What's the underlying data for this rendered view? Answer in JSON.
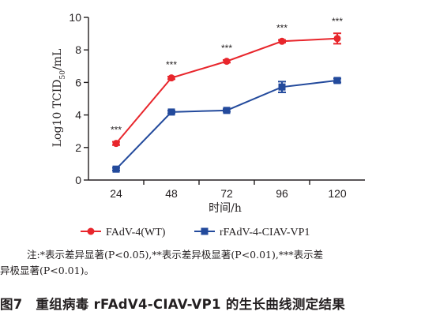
{
  "chart_data": {
    "type": "line",
    "x": [
      24,
      48,
      72,
      96,
      120
    ],
    "xlabel": "时间/h",
    "ylabel": "Log10 TCID50/mL",
    "ylim": [
      0,
      10
    ],
    "yticks": [
      0,
      2,
      4,
      6,
      8,
      10
    ],
    "series": [
      {
        "name": "FAdV-4(WT)",
        "color": "#e8262c",
        "marker": "circle",
        "values": [
          2.25,
          6.28,
          7.3,
          8.53,
          8.7
        ],
        "errors": [
          0.1,
          0.08,
          0.08,
          0.08,
          0.32
        ]
      },
      {
        "name": "rFAdV-4-CIAV-VP1",
        "color": "#234a9c",
        "marker": "square",
        "values": [
          0.67,
          4.18,
          4.28,
          5.72,
          6.12
        ],
        "errors": [
          0.08,
          0.08,
          0.08,
          0.33,
          0.12
        ]
      }
    ],
    "annotations": [
      "***",
      "***",
      "***",
      "***",
      "***"
    ],
    "legend_position": "bottom"
  },
  "ylabel_parts": {
    "main": "Log10 TCID",
    "sub": "50",
    "tail": "/mL"
  },
  "note": {
    "line1": "注:*表示差异显著(P<0.05),**表示差异极显著(P<0.01),***表示差",
    "line2": "异极显著(P<0.01)。"
  },
  "caption": "图7　重组病毒 rFAdV4-CIAV-VP1 的生长曲线测定结果"
}
